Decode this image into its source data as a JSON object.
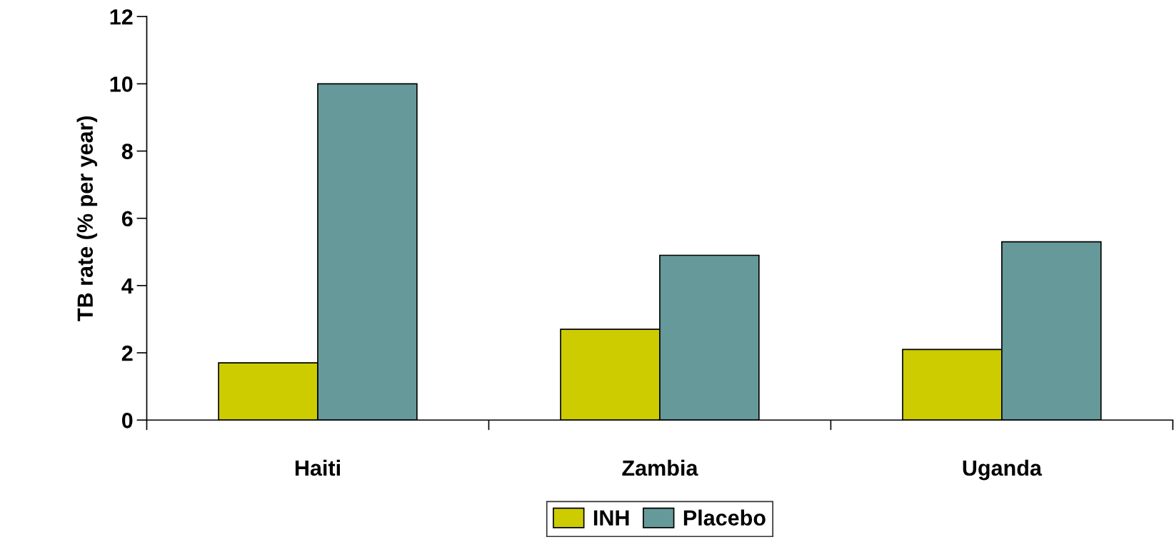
{
  "chart_data": {
    "type": "bar",
    "ylabel": "TB rate (% per year)",
    "categories": [
      "Haiti",
      "Zambia",
      "Uganda"
    ],
    "series": [
      {
        "name": "INH",
        "color": "#cccc00",
        "values": [
          1.7,
          2.7,
          2.1
        ]
      },
      {
        "name": "Placebo",
        "color": "#669999",
        "values": [
          10.0,
          4.9,
          5.3
        ]
      }
    ],
    "ylim": [
      0,
      12
    ],
    "yticks": [
      0,
      2,
      4,
      6,
      8,
      10,
      12
    ],
    "grid": false,
    "legend": "bottom"
  }
}
